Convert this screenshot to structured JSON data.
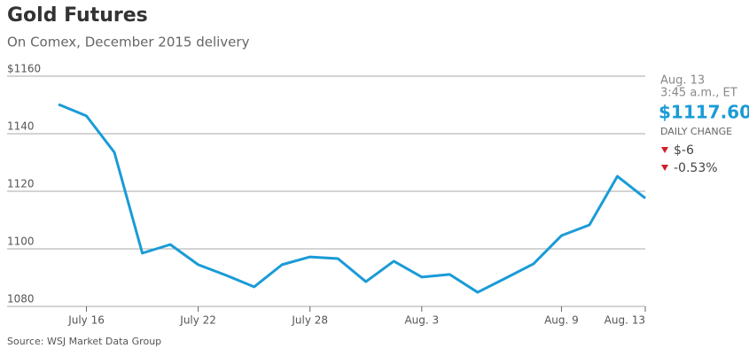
{
  "chart_data": {
    "type": "line",
    "title": "Gold Futures",
    "subtitle": "On Comex, December 2015 delivery",
    "source": "Source: WSJ Market Data Group",
    "categories": [
      null,
      "July 16",
      null,
      null,
      null,
      "July 22",
      null,
      null,
      null,
      "July 28",
      null,
      null,
      null,
      "Aug. 3",
      null,
      null,
      null,
      null,
      "Aug. 9",
      null,
      null,
      "Aug. 13"
    ],
    "series": [
      {
        "name": "Gold Futures",
        "color": "#1a9bd7",
        "values": [
          1150.2,
          1146.2,
          1133.5,
          1098.5,
          1101.5,
          1094.5,
          1090.8,
          1086.8,
          1094.5,
          1097.2,
          1096.6,
          1088.6,
          1095.7,
          1090.2,
          1091.1,
          1084.9,
          1089.8,
          1094.8,
          1104.6,
          1108.3,
          1125.2,
          1117.6
        ]
      }
    ],
    "ylim": [
      1080,
      1160
    ],
    "yticks": [
      1080,
      1100,
      1120,
      1140,
      {
        "value": 1160,
        "label": "$1160"
      }
    ],
    "grid": true,
    "sidebar": {
      "date": "Aug. 13",
      "time": "3:45 a.m., ET",
      "price": "$1117.60",
      "change_label": "DAILY CHANGE",
      "change": "$-6",
      "change_pct": "-0.53%"
    }
  }
}
